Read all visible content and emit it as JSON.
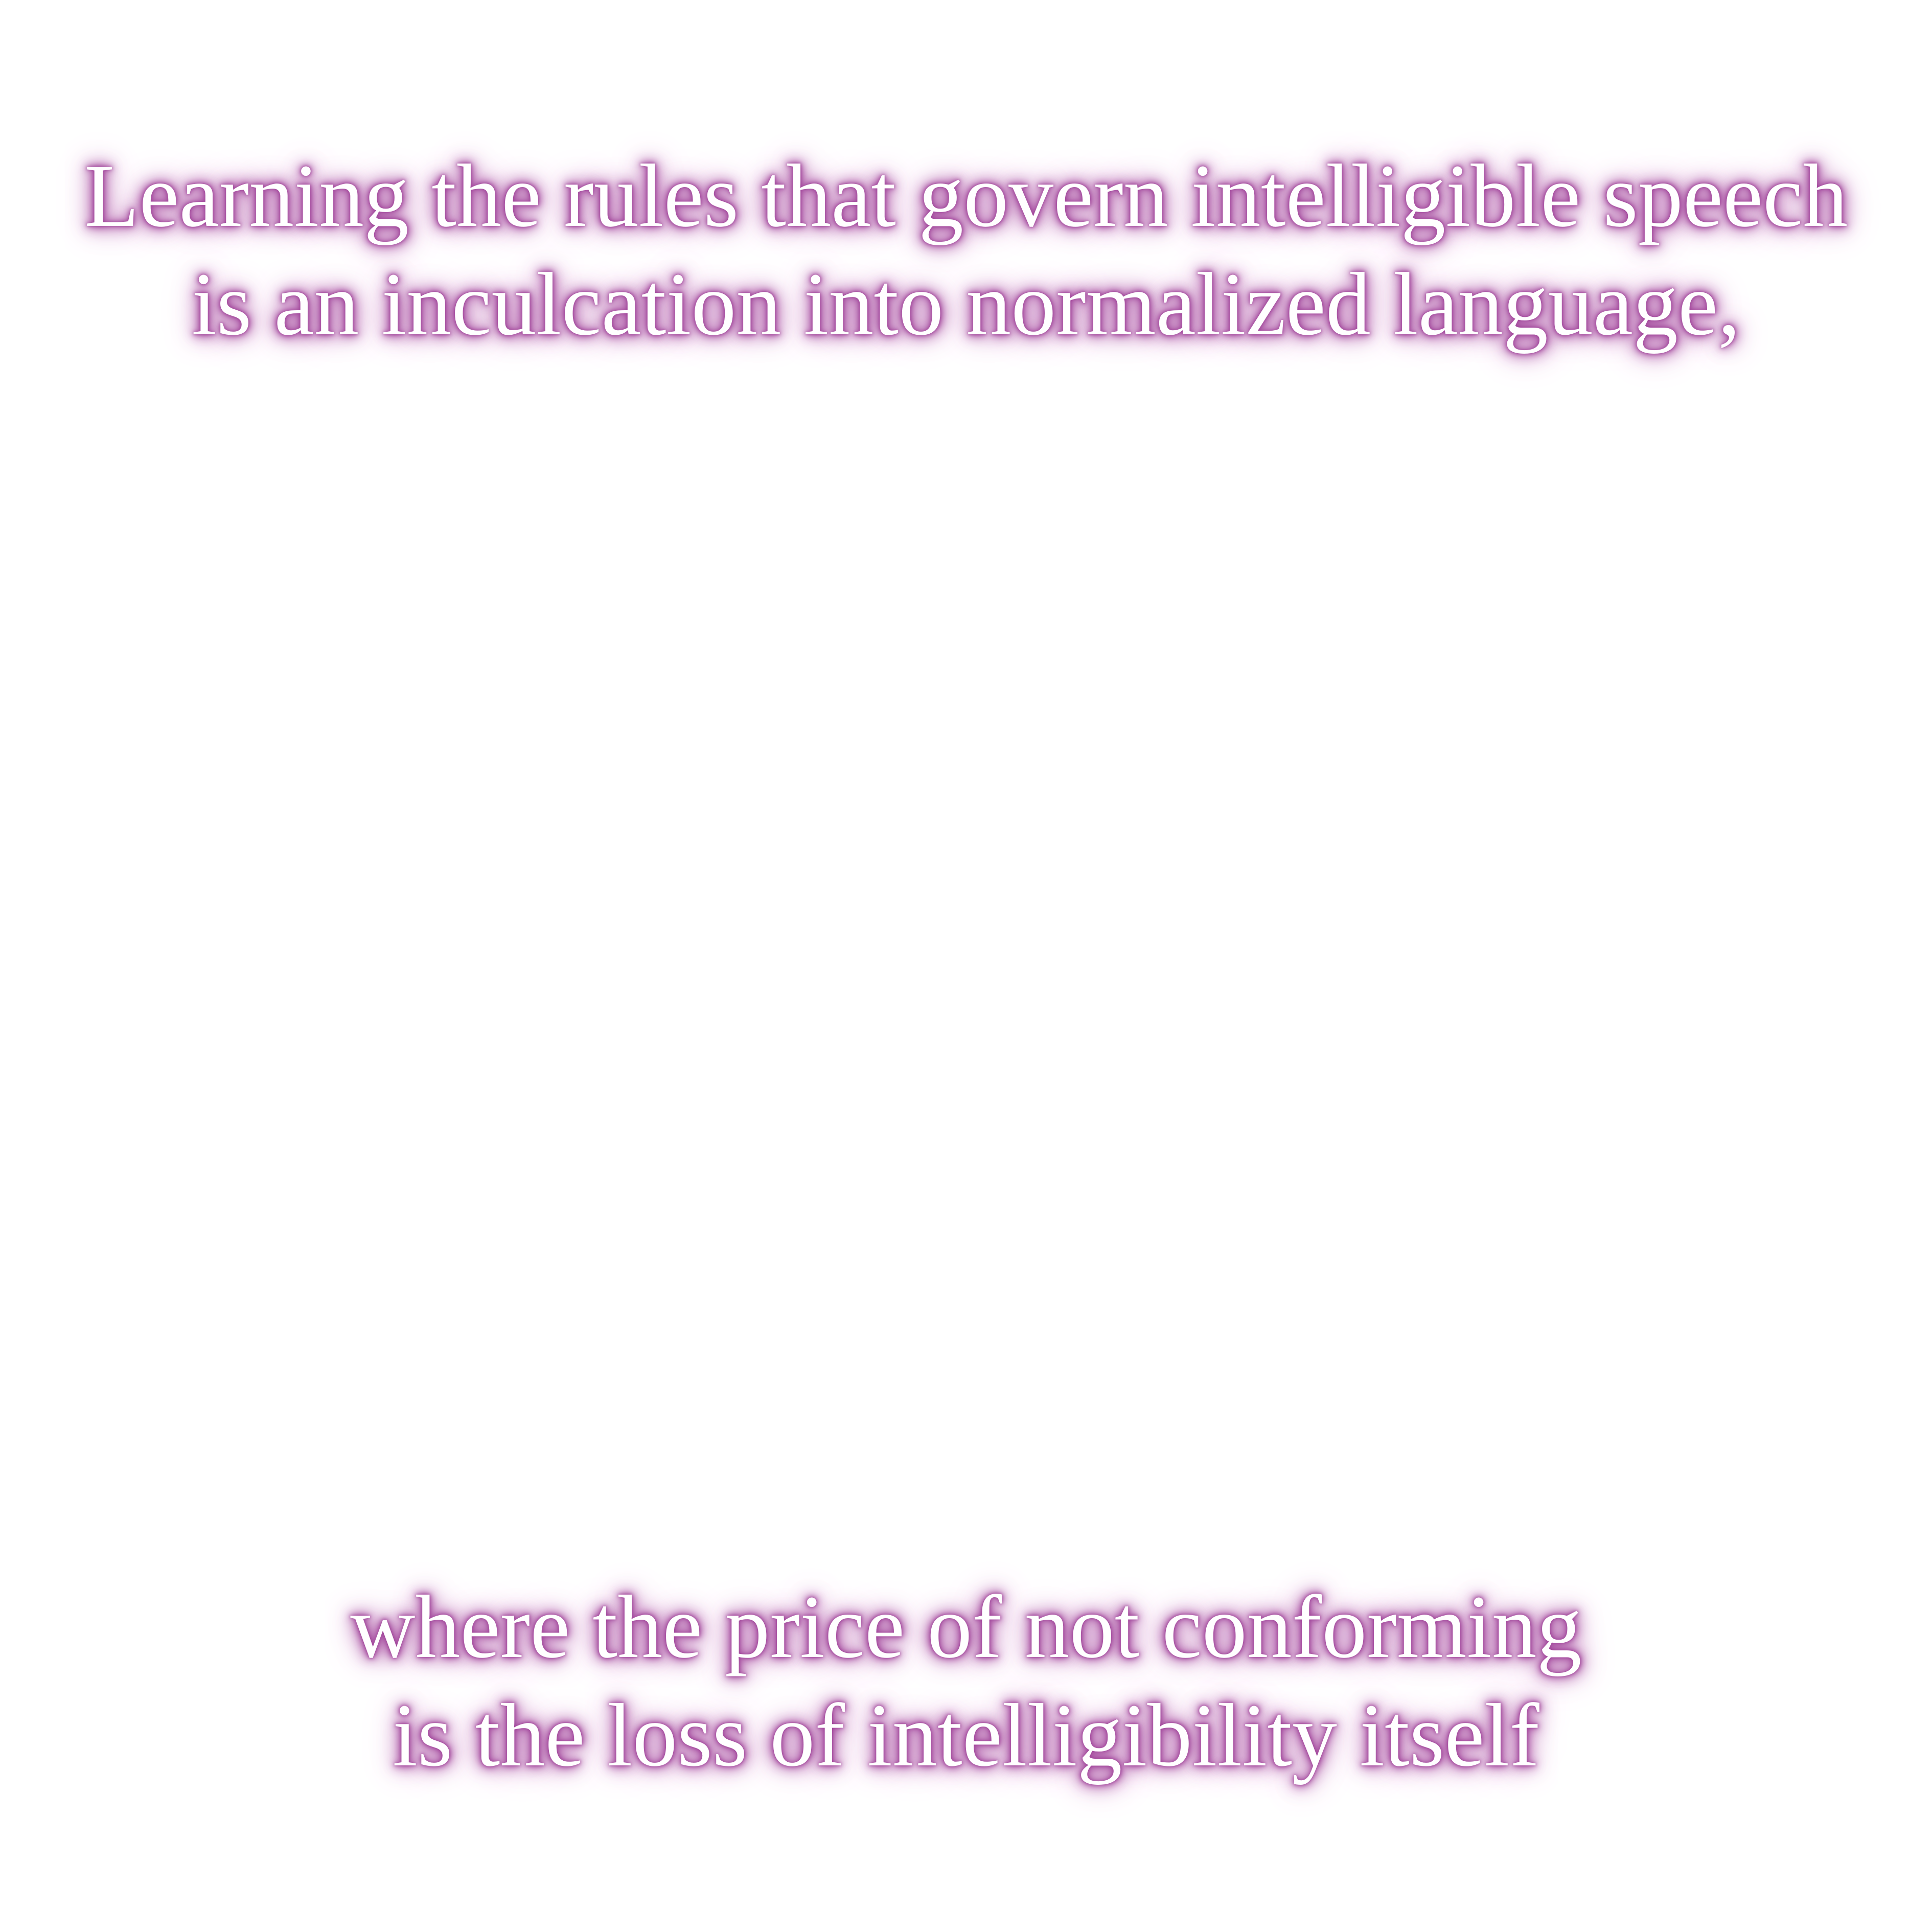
{
  "caption_top": {
    "line1": "Learning the rules that govern intelligible speech",
    "line2": "is an inculcation into normalized language,"
  },
  "caption_bottom": {
    "line1": "where the price of not conforming",
    "line2": "is the loss of intelligibility itself"
  },
  "colors": {
    "background": "#ffffff",
    "text": "#ffffff",
    "glow": "#a0449a"
  }
}
